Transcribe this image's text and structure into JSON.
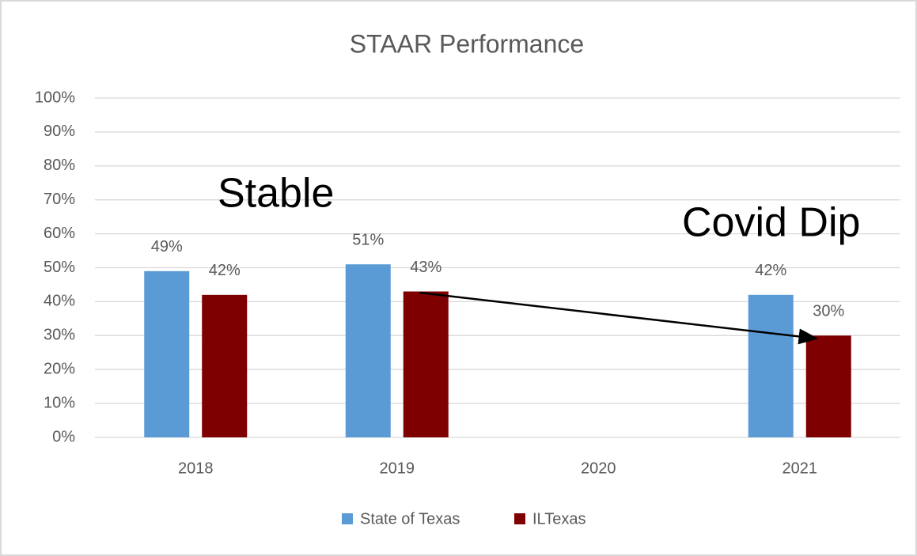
{
  "chart_data": {
    "type": "bar",
    "title": "STAAR Performance",
    "categories": [
      "2018",
      "2019",
      "2020",
      "2021"
    ],
    "series": [
      {
        "name": "State of Texas",
        "color": "#5b9bd5",
        "values": [
          49,
          51,
          null,
          42
        ],
        "value_labels": [
          "49%",
          "51%",
          null,
          "42%"
        ]
      },
      {
        "name": "ILTexas",
        "color": "#7f0000",
        "values": [
          42,
          43,
          null,
          30
        ],
        "value_labels": [
          "42%",
          "43%",
          null,
          "30%"
        ]
      }
    ],
    "ylim": [
      0,
      100
    ],
    "yticks": [
      {
        "value": 0,
        "label": "0%"
      },
      {
        "value": 10,
        "label": "10%"
      },
      {
        "value": 20,
        "label": "20%"
      },
      {
        "value": 30,
        "label": "30%"
      },
      {
        "value": 40,
        "label": "40%"
      },
      {
        "value": 50,
        "label": "50%"
      },
      {
        "value": 60,
        "label": "60%"
      },
      {
        "value": 70,
        "label": "70%"
      },
      {
        "value": 80,
        "label": "80%"
      },
      {
        "value": 90,
        "label": "90%"
      },
      {
        "value": 100,
        "label": "100%"
      }
    ],
    "grid": true,
    "annotations": [
      "Stable",
      "Covid Dip"
    ]
  }
}
